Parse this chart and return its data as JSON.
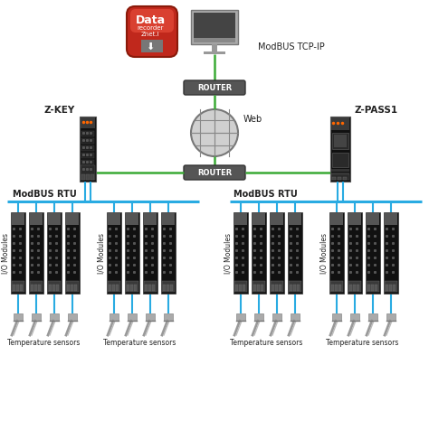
{
  "bg_color": "#ffffff",
  "green": "#3aaa35",
  "blue": "#29abe2",
  "dark": "#1a1a1a",
  "gray_text": "#222222",
  "router_fc": "#555555",
  "router_ec": "#333333",
  "globe_fc": "#cccccc",
  "globe_ec": "#888888",
  "label_modbus_tcp": "ModBUS TCP-IP",
  "label_web": "Web",
  "label_router": "ROUTER",
  "label_zkey": "Z-KEY",
  "label_zpass": "Z-PASS1",
  "label_modbus_rtu": "ModBUS RTU",
  "label_io": "I/O Modules",
  "label_temp": "Temperature sensors",
  "figw": 4.74,
  "figh": 4.77,
  "dpi": 100
}
